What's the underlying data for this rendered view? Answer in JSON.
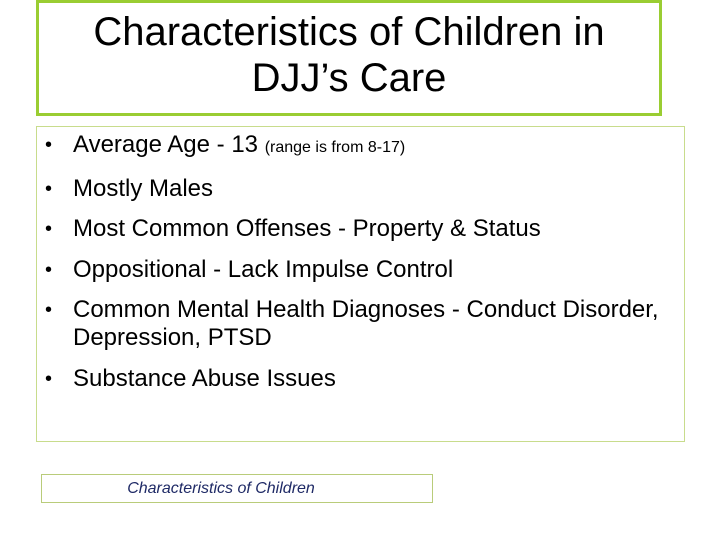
{
  "slide": {
    "title_line1": "Characteristics of Children in",
    "title_line2": "DJJ’s Care",
    "bullet_glyph": "•",
    "bullets": [
      {
        "main": "Average Age - 13 ",
        "small": "(range is from 8-17)"
      },
      {
        "main": "Mostly Males"
      },
      {
        "main": "Most Common Offenses - Property & Status"
      },
      {
        "main": "Oppositional -  Lack Impulse Control"
      },
      {
        "main": "Common Mental Health Diagnoses - Conduct Disorder, Depression, PTSD"
      },
      {
        "main": "Substance Abuse Issues"
      }
    ],
    "footer": "Characteristics of Children"
  },
  "colors": {
    "title_border": "#9acd32",
    "body_border": "#c8dc8c",
    "footer_text": "#1f2a66"
  }
}
